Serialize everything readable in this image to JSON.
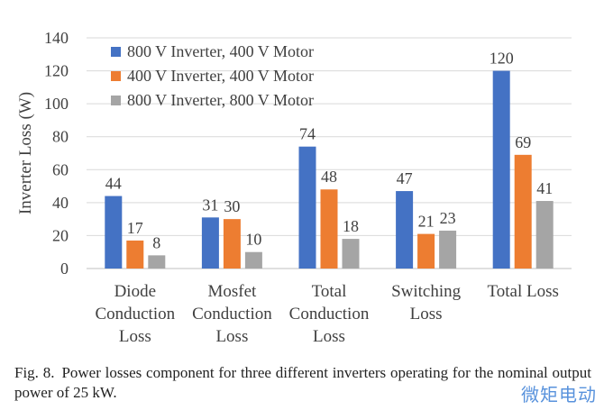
{
  "chart_data": {
    "type": "bar",
    "title": "",
    "ylabel": "Inverter Loss (W)",
    "xlabel": "",
    "ylim": [
      0,
      140
    ],
    "yticks": [
      0,
      20,
      40,
      60,
      80,
      100,
      120,
      140
    ],
    "grid": true,
    "legend_position": "top-left",
    "categories": [
      [
        "Diode",
        "Conduction",
        "Loss"
      ],
      [
        "Mosfet",
        "Conduction",
        "Loss"
      ],
      [
        "Total",
        "Conduction",
        "Loss"
      ],
      [
        "Switching",
        "Loss"
      ],
      [
        "Total Loss"
      ]
    ],
    "series": [
      {
        "name": "800 V Inverter, 400 V Motor",
        "color": "#4472c4",
        "values": [
          44,
          31,
          74,
          47,
          120
        ]
      },
      {
        "name": "400 V Inverter, 400 V Motor",
        "color": "#ed7d31",
        "values": [
          17,
          30,
          48,
          21,
          69
        ]
      },
      {
        "name": "800 V Inverter, 800 V Motor",
        "color": "#a5a5a5",
        "values": [
          8,
          10,
          18,
          23,
          41
        ]
      }
    ]
  },
  "caption": {
    "label": "Fig. 8.",
    "text": "Power losses component for three different inverters operating for the nominal output power of 25 kW."
  },
  "watermark": "微矩电动"
}
